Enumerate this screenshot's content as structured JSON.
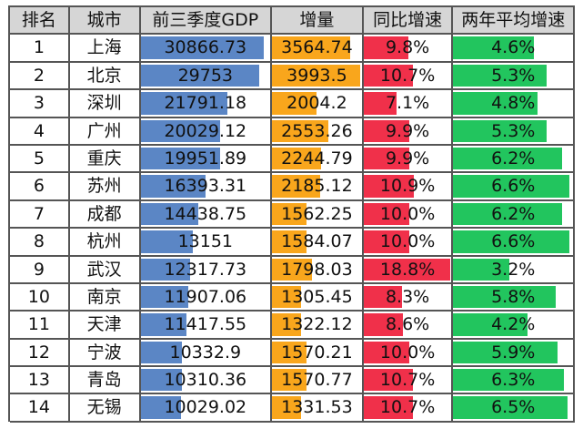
{
  "colors": {
    "gdp_bar": "#5b86c5",
    "increase_bar": "#f9a61c",
    "yoy_bar": "#f0304a",
    "avg_bar": "#22c55e"
  },
  "headers": [
    "排名",
    "城市",
    "前三季度GDP",
    "增量",
    "同比增速",
    "两年平均增速"
  ],
  "rows": [
    {
      "rank": "1",
      "city": "上海",
      "gdp": "30866.73",
      "gdp_val": 30866.73,
      "increase": "3564.74",
      "inc_val": 3564.74,
      "yoy": "9.8%",
      "yoy_val": 9.8,
      "avg": "4.6%",
      "avg_val": 4.6
    },
    {
      "rank": "2",
      "city": "北京",
      "gdp": "29753",
      "gdp_val": 29753,
      "increase": "3993.5",
      "inc_val": 3993.5,
      "yoy": "10.7%",
      "yoy_val": 10.7,
      "avg": "5.3%",
      "avg_val": 5.3
    },
    {
      "rank": "3",
      "city": "深圳",
      "gdp": "21791.18",
      "gdp_val": 21791.18,
      "increase": "2004.2",
      "inc_val": 2004.2,
      "yoy": "7.1%",
      "yoy_val": 7.1,
      "avg": "4.8%",
      "avg_val": 4.8
    },
    {
      "rank": "4",
      "city": "广州",
      "gdp": "20029.12",
      "gdp_val": 20029.12,
      "increase": "2553.26",
      "inc_val": 2553.26,
      "yoy": "9.9%",
      "yoy_val": 9.9,
      "avg": "5.3%",
      "avg_val": 5.3
    },
    {
      "rank": "5",
      "city": "重庆",
      "gdp": "19951.89",
      "gdp_val": 19951.89,
      "increase": "2244.79",
      "inc_val": 2244.79,
      "yoy": "9.9%",
      "yoy_val": 9.9,
      "avg": "6.2%",
      "avg_val": 6.2
    },
    {
      "rank": "6",
      "city": "苏州",
      "gdp": "16393.31",
      "gdp_val": 16393.31,
      "increase": "2185.12",
      "inc_val": 2185.12,
      "yoy": "10.9%",
      "yoy_val": 10.9,
      "avg": "6.6%",
      "avg_val": 6.6
    },
    {
      "rank": "7",
      "city": "成都",
      "gdp": "14438.75",
      "gdp_val": 14438.75,
      "increase": "1562.25",
      "inc_val": 1562.25,
      "yoy": "10.0%",
      "yoy_val": 10.0,
      "avg": "6.2%",
      "avg_val": 6.2
    },
    {
      "rank": "8",
      "city": "杭州",
      "gdp": "13151",
      "gdp_val": 13151,
      "increase": "1584.07",
      "inc_val": 1584.07,
      "yoy": "10.0%",
      "yoy_val": 10.0,
      "avg": "6.6%",
      "avg_val": 6.6
    },
    {
      "rank": "9",
      "city": "武汉",
      "gdp": "12317.73",
      "gdp_val": 12317.73,
      "increase": "1798.03",
      "inc_val": 1798.03,
      "yoy": "18.8%",
      "yoy_val": 18.8,
      "avg": "3.2%",
      "avg_val": 3.2
    },
    {
      "rank": "10",
      "city": "南京",
      "gdp": "11907.06",
      "gdp_val": 11907.06,
      "increase": "1305.45",
      "inc_val": 1305.45,
      "yoy": "8.3%",
      "yoy_val": 8.3,
      "avg": "5.8%",
      "avg_val": 5.8
    },
    {
      "rank": "11",
      "city": "天津",
      "gdp": "11417.55",
      "gdp_val": 11417.55,
      "increase": "1322.12",
      "inc_val": 1322.12,
      "yoy": "8.6%",
      "yoy_val": 8.6,
      "avg": "4.2%",
      "avg_val": 4.2
    },
    {
      "rank": "12",
      "city": "宁波",
      "gdp": "10332.9",
      "gdp_val": 10332.9,
      "increase": "1570.21",
      "inc_val": 1570.21,
      "yoy": "10.0%",
      "yoy_val": 10.0,
      "avg": "5.9%",
      "avg_val": 5.9
    },
    {
      "rank": "13",
      "city": "青岛",
      "gdp": "10310.36",
      "gdp_val": 10310.36,
      "increase": "1570.77",
      "inc_val": 1570.77,
      "yoy": "10.7%",
      "yoy_val": 10.7,
      "avg": "6.3%",
      "avg_val": 6.3
    },
    {
      "rank": "14",
      "city": "无锡",
      "gdp": "10029.02",
      "gdp_val": 10029.02,
      "increase": "1331.53",
      "inc_val": 1331.53,
      "yoy": "10.7%",
      "yoy_val": 10.7,
      "avg": "6.5%",
      "avg_val": 6.5
    }
  ]
}
